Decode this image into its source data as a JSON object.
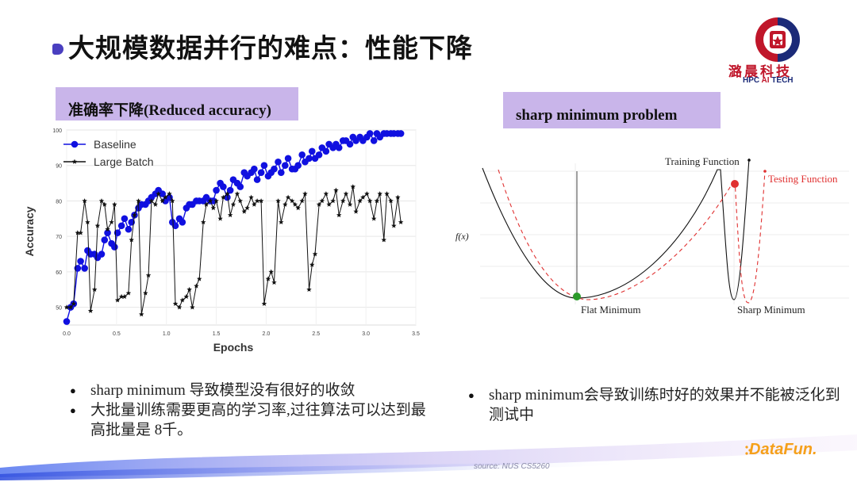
{
  "slide": {
    "title": "大规模数据并行的难点：性能下降",
    "left_label": "准确率下降(Reduced accuracy)",
    "right_label": "sharp minimum problem",
    "bullets_left": [
      "sharp minimum 导致模型没有很好的收敛",
      "大批量训练需要更高的学习率,过往算法可以达到最高批量是 8千。"
    ],
    "bullets_right": [
      "sharp minimum会导致训练时好的效果并不能被泛化到测试中"
    ],
    "source": "source: NUS CS5260"
  },
  "logo": {
    "cn": "潞晨科技",
    "en_prefix": "HPC ",
    "en_ai": "AI",
    "en_suffix": " TECH",
    "colors": {
      "red": "#c0162a",
      "blue": "#1b2a78"
    }
  },
  "brand": {
    "text": "DataFun.",
    "color": "#f5a01a"
  },
  "diagram": {
    "fx_label": "f(x)",
    "training_label": "Training Function",
    "testing_label": "Testing Function",
    "flat_label": "Flat Minimum",
    "sharp_label": "Sharp Minimum",
    "colors": {
      "training": "#111111",
      "testing": "#e03030"
    }
  },
  "chart_data": {
    "type": "line",
    "xlabel": "Epochs",
    "ylabel": "Accuracy",
    "xlim": [
      0,
      35
    ],
    "ylim": [
      45,
      100
    ],
    "x_ticks": [
      "0.0",
      "0.5",
      "1.0",
      "1.5",
      "2.0",
      "2.5",
      "3.0",
      "3.5"
    ],
    "y_ticks": [
      "50",
      "60",
      "70",
      "80",
      "90",
      "100"
    ],
    "y_tick_values": [
      50,
      60,
      70,
      80,
      90,
      100
    ],
    "legend_position": "top-left",
    "series": [
      {
        "name": "Baseline",
        "color": "#1010e0",
        "marker": "circle",
        "x": [
          0.0,
          0.4,
          0.7,
          1.1,
          1.4,
          1.8,
          2.1,
          2.4,
          2.8,
          3.1,
          3.5,
          3.8,
          4.1,
          4.5,
          4.8,
          5.1,
          5.5,
          5.8,
          6.2,
          6.5,
          6.8,
          7.2,
          7.5,
          7.9,
          8.2,
          8.5,
          8.9,
          9.2,
          9.6,
          9.9,
          10.3,
          10.6,
          10.9,
          11.3,
          11.6,
          12.0,
          12.3,
          12.6,
          13.0,
          13.3,
          13.7,
          14.0,
          14.4,
          14.7,
          15.0,
          15.4,
          15.7,
          16.1,
          16.4,
          16.7,
          17.1,
          17.4,
          17.8,
          18.1,
          18.5,
          18.8,
          19.1,
          19.5,
          19.8,
          20.2,
          20.5,
          20.8,
          21.2,
          21.5,
          21.9,
          22.2,
          22.6,
          22.9,
          23.2,
          23.6,
          23.9,
          24.3,
          24.6,
          24.9,
          25.3,
          25.6,
          26.0,
          26.3,
          26.7,
          27.0,
          27.3,
          27.7,
          28.0,
          28.4,
          28.7,
          29.0,
          29.4,
          29.7,
          30.1,
          30.4,
          30.8,
          31.1,
          31.4,
          31.8,
          32.1,
          32.5,
          32.8,
          33.2,
          33.5
        ],
        "y": [
          46,
          50,
          51,
          61,
          63,
          61,
          66,
          65,
          65,
          64,
          65,
          69,
          71,
          68,
          67,
          71,
          73,
          75,
          72,
          74,
          76,
          78,
          79,
          79,
          80,
          81,
          82,
          83,
          82,
          80,
          81,
          74,
          73,
          75,
          74,
          78,
          79,
          79,
          80,
          80,
          80,
          81,
          80,
          80,
          83,
          85,
          84,
          81,
          83,
          86,
          85,
          84,
          88,
          87,
          88,
          89,
          86,
          88,
          90,
          87,
          88,
          89,
          91,
          88,
          90,
          92,
          89,
          89,
          90,
          93,
          91,
          92,
          94,
          92,
          93,
          95,
          94,
          96,
          95,
          96,
          95,
          97,
          97,
          96,
          98,
          97,
          98,
          97,
          98,
          99,
          97,
          99,
          98,
          99,
          99,
          99,
          99,
          99,
          99
        ]
      },
      {
        "name": "Large Batch",
        "color": "#111111",
        "marker": "star",
        "x": [
          0.0,
          0.4,
          0.7,
          1.1,
          1.4,
          1.8,
          2.1,
          2.4,
          2.8,
          3.1,
          3.5,
          3.8,
          4.1,
          4.5,
          4.8,
          5.1,
          5.5,
          5.8,
          6.2,
          6.5,
          6.8,
          7.2,
          7.5,
          7.9,
          8.2,
          8.5,
          8.9,
          9.2,
          9.6,
          9.9,
          10.3,
          10.6,
          10.9,
          11.3,
          11.6,
          12.0,
          12.3,
          12.6,
          13.0,
          13.3,
          13.7,
          14.0,
          14.4,
          14.7,
          15.0,
          15.4,
          15.7,
          16.1,
          16.4,
          16.7,
          17.1,
          17.4,
          17.8,
          18.1,
          18.5,
          18.8,
          19.1,
          19.5,
          19.8,
          20.2,
          20.5,
          20.8,
          21.2,
          21.5,
          21.9,
          22.2,
          22.6,
          22.9,
          23.2,
          23.6,
          23.9,
          24.3,
          24.6,
          24.9,
          25.3,
          25.6,
          26.0,
          26.3,
          26.7,
          27.0,
          27.3,
          27.7,
          28.0,
          28.4,
          28.7,
          29.0,
          29.4,
          29.7,
          30.1,
          30.4,
          30.8,
          31.1,
          31.4,
          31.8,
          32.1,
          32.5,
          32.8,
          33.2,
          33.5
        ],
        "y": [
          50,
          50,
          51,
          71,
          71,
          80,
          74,
          49,
          55,
          73,
          80,
          79,
          72,
          74,
          79,
          52,
          53,
          53,
          54,
          69,
          76,
          80,
          48,
          54,
          59,
          80,
          79,
          82,
          80,
          81,
          82,
          80,
          51,
          50,
          52,
          53,
          55,
          50,
          56,
          58,
          74,
          79,
          80,
          78,
          80,
          75,
          81,
          82,
          76,
          79,
          82,
          80,
          77,
          78,
          81,
          79,
          80,
          80,
          51,
          58,
          60,
          57,
          80,
          74,
          79,
          81,
          80,
          79,
          78,
          80,
          82,
          55,
          62,
          65,
          79,
          80,
          82,
          79,
          80,
          83,
          76,
          80,
          82,
          79,
          84,
          77,
          80,
          81,
          82,
          80,
          75,
          80,
          82,
          69,
          82,
          80,
          73,
          81,
          74
        ]
      }
    ]
  }
}
